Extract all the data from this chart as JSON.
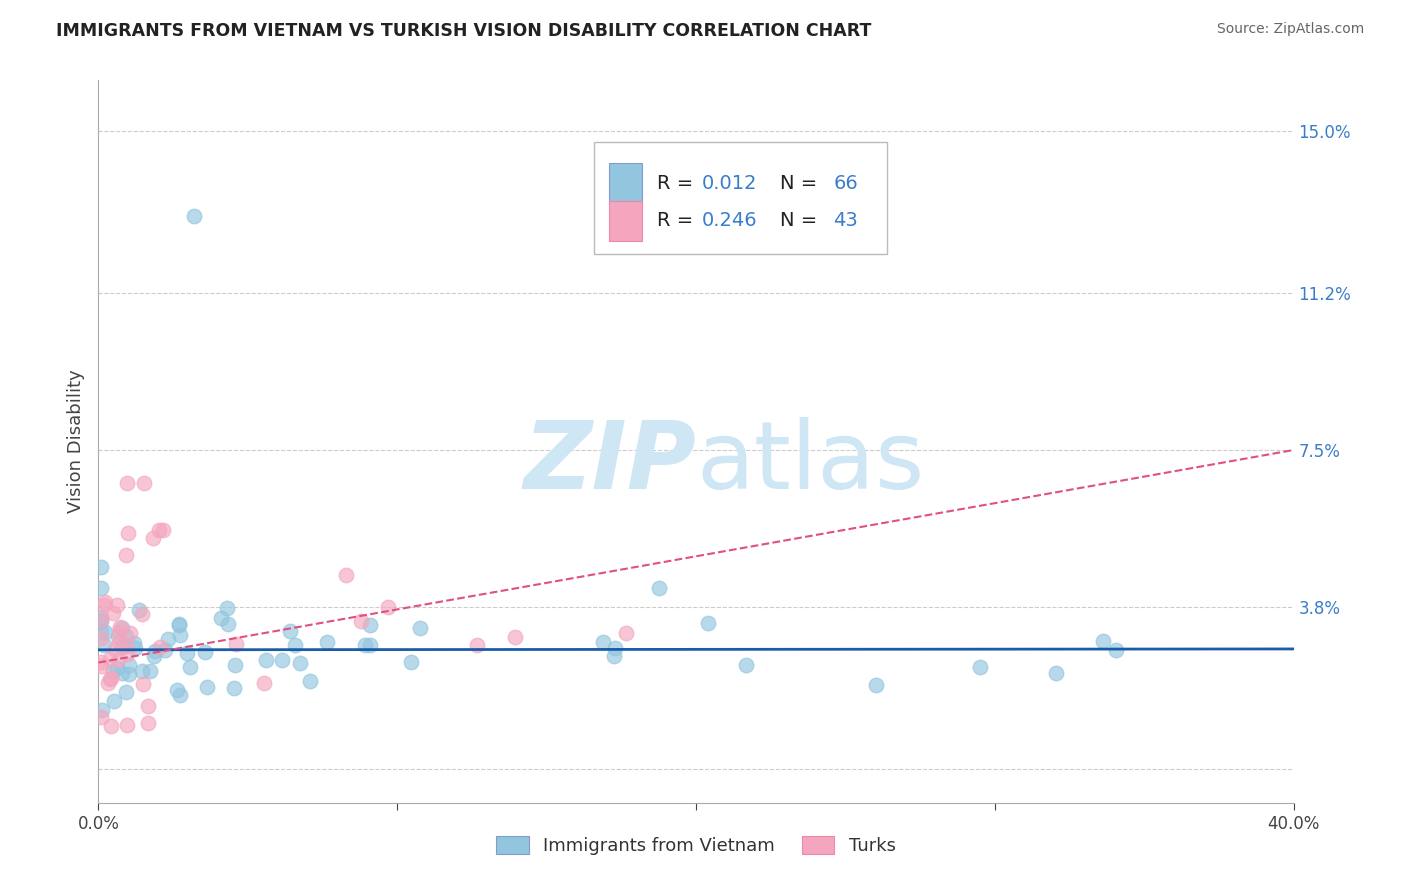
{
  "title": "IMMIGRANTS FROM VIETNAM VS TURKISH VISION DISABILITY CORRELATION CHART",
  "source": "Source: ZipAtlas.com",
  "ylabel": "Vision Disability",
  "xlim": [
    0.0,
    0.4
  ],
  "ylim": [
    -0.008,
    0.162
  ],
  "ytick_values": [
    0.0,
    0.038,
    0.075,
    0.112,
    0.15
  ],
  "ytick_labels": [
    "",
    "3.8%",
    "7.5%",
    "11.2%",
    "15.0%"
  ],
  "color_blue": "#92c5de",
  "color_pink": "#f4a6be",
  "color_blue_line": "#1a5ca8",
  "color_pink_line": "#e05080",
  "color_blue_text": "#3a7dc9",
  "watermark_color": "#cfe6f5",
  "background_color": "#ffffff",
  "grid_color": "#cccccc",
  "series1_label": "Immigrants from Vietnam",
  "series2_label": "Turks",
  "legend_r1_prefix": "R = ",
  "legend_r1_val": "0.012",
  "legend_n1_prefix": "  N = ",
  "legend_n1_val": "66",
  "legend_r2_prefix": "R = ",
  "legend_r2_val": "0.246",
  "legend_n2_prefix": "  N = ",
  "legend_n2_val": "43"
}
